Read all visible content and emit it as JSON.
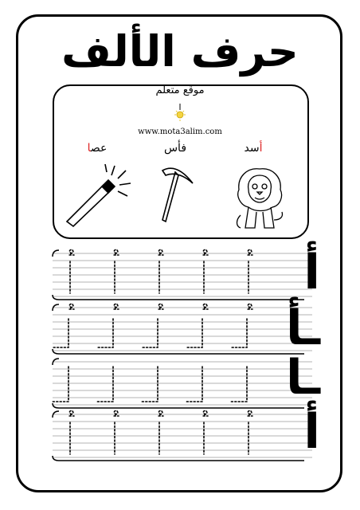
{
  "page": {
    "title": "حرف الألف",
    "brand_name": "موقع متعلم",
    "brand_url": "www.mota3alim.com"
  },
  "pictures": [
    {
      "word_first": "أ",
      "word_rest": "سد",
      "icon": "lion-icon"
    },
    {
      "word_first": "أ",
      "word_rest": "فأس",
      "icon": "pickaxe-icon"
    },
    {
      "word_first": "ا",
      "word_rest": "عص",
      "icon": "magic-wand-icon"
    }
  ],
  "practice_rows": [
    {
      "model_letter": "أ"
    },
    {
      "model_letter": "ـأ"
    },
    {
      "model_letter": "ـا"
    },
    {
      "model_letter": "أ"
    }
  ],
  "colors": {
    "ink": "#000000",
    "accent": "#d22222"
  }
}
